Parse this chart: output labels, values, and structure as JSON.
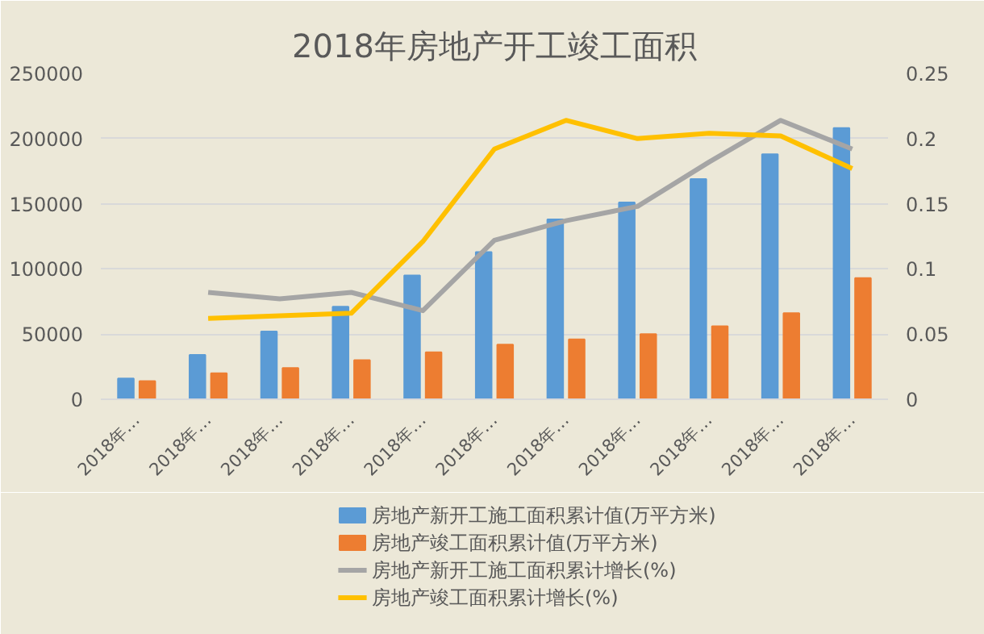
{
  "chart_data": {
    "type": "bar",
    "title": "2018年房地产开工竣工面积",
    "categories": [
      "2018年…",
      "2018年…",
      "2018年…",
      "2018年…",
      "2018年…",
      "2018年…",
      "2018年…",
      "2018年…",
      "2018年…",
      "2018年…",
      "2018年…"
    ],
    "series": [
      {
        "name": "房地产新开工施工面积累计值(万平方米)",
        "color": "#5b9bd5",
        "values": [
          16000,
          34000,
          52000,
          71000,
          95000,
          113000,
          138000,
          151000,
          169000,
          188000,
          208000
        ]
      },
      {
        "name": "房地产竣工面积累计值(万平方米)",
        "color": "#ed7d31",
        "values": [
          14000,
          20000,
          24000,
          30000,
          36000,
          42000,
          46000,
          50000,
          56000,
          66000,
          93000
        ]
      },
      {
        "name": "房地产新开工施工面积累计增长(%)",
        "type": "line",
        "axis": "y2",
        "color": "#a5a5a5",
        "values": [
          null,
          0.082,
          0.077,
          0.082,
          0.068,
          0.122,
          0.137,
          0.148,
          0.182,
          0.214,
          0.192
        ]
      },
      {
        "name": "房地产竣工面积累计增长(%)",
        "type": "line",
        "axis": "y2",
        "color": "#ffc000",
        "values": [
          null,
          0.062,
          0.064,
          0.066,
          0.121,
          0.192,
          0.214,
          0.2,
          0.204,
          0.202,
          0.177
        ]
      }
    ],
    "ylim": [
      0,
      250000
    ],
    "yticks": [
      0,
      50000,
      100000,
      150000,
      200000,
      250000
    ],
    "y2lim": [
      0,
      0.25
    ],
    "y2ticks": [
      0,
      0.05,
      0.1,
      0.15,
      0.2,
      0.25
    ],
    "grid": "y",
    "legend": "bottom",
    "marker": "none",
    "line_style": "solid"
  }
}
